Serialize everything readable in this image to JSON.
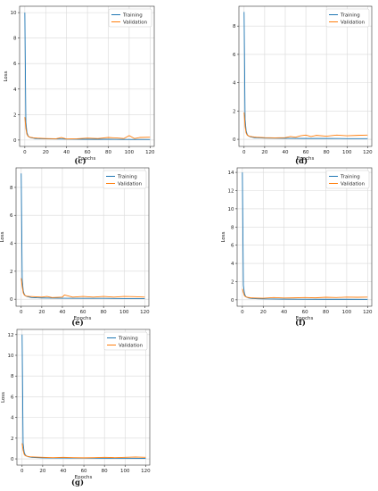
{
  "chart_data": [
    {
      "type": "line",
      "caption": "(c)",
      "xlabel": "Epochs",
      "ylabel": "Loss",
      "xlim": [
        -5,
        124
      ],
      "ylim": [
        -0.5,
        10.5
      ],
      "xticks": [
        0,
        20,
        40,
        60,
        80,
        100,
        120
      ],
      "yticks": [
        0,
        2,
        4,
        6,
        8,
        10
      ],
      "grid": true,
      "legend": "top-right",
      "series": [
        {
          "name": "Training",
          "color": "#1f77b4",
          "x": [
            0,
            1,
            2,
            3,
            4,
            6,
            8,
            10,
            15,
            20,
            30,
            40,
            60,
            80,
            100,
            120
          ],
          "y": [
            10.0,
            1.4,
            0.6,
            0.35,
            0.25,
            0.18,
            0.15,
            0.12,
            0.1,
            0.09,
            0.08,
            0.07,
            0.06,
            0.06,
            0.05,
            0.05
          ]
        },
        {
          "name": "Validation",
          "color": "#ff7f0e",
          "x": [
            0,
            1,
            2,
            3,
            5,
            8,
            12,
            20,
            30,
            35,
            40,
            50,
            60,
            70,
            80,
            90,
            95,
            100,
            105,
            110,
            120
          ],
          "y": [
            1.8,
            0.9,
            0.45,
            0.3,
            0.22,
            0.18,
            0.15,
            0.12,
            0.1,
            0.2,
            0.08,
            0.1,
            0.15,
            0.12,
            0.2,
            0.15,
            0.12,
            0.35,
            0.12,
            0.2,
            0.22
          ]
        }
      ]
    },
    {
      "type": "line",
      "caption": "(d)",
      "xlabel": "Epochs",
      "ylabel": "",
      "xlim": [
        -5,
        124
      ],
      "ylim": [
        -0.5,
        9.4
      ],
      "xticks": [
        0,
        20,
        40,
        60,
        80,
        100,
        120
      ],
      "yticks": [
        0,
        2,
        4,
        6,
        8
      ],
      "grid": true,
      "legend": "top-right",
      "series": [
        {
          "name": "Training",
          "color": "#1f77b4",
          "x": [
            0,
            1,
            2,
            3,
            4,
            6,
            8,
            10,
            15,
            20,
            30,
            40,
            60,
            80,
            100,
            120
          ],
          "y": [
            9.0,
            1.4,
            0.6,
            0.35,
            0.25,
            0.18,
            0.15,
            0.12,
            0.1,
            0.09,
            0.08,
            0.07,
            0.06,
            0.06,
            0.05,
            0.05
          ]
        },
        {
          "name": "Validation",
          "color": "#ff7f0e",
          "x": [
            0,
            1,
            2,
            3,
            5,
            8,
            12,
            20,
            30,
            40,
            45,
            50,
            55,
            60,
            65,
            70,
            80,
            90,
            100,
            110,
            120
          ],
          "y": [
            1.9,
            0.9,
            0.45,
            0.3,
            0.22,
            0.18,
            0.15,
            0.12,
            0.1,
            0.12,
            0.2,
            0.15,
            0.25,
            0.3,
            0.2,
            0.28,
            0.22,
            0.3,
            0.25,
            0.28,
            0.3
          ]
        }
      ]
    },
    {
      "type": "line",
      "caption": "(e)",
      "xlabel": "Epochs",
      "ylabel": "Loss",
      "xlim": [
        -5,
        124
      ],
      "ylim": [
        -0.5,
        9.4
      ],
      "xticks": [
        0,
        20,
        40,
        60,
        80,
        100,
        120
      ],
      "yticks": [
        0,
        2,
        4,
        6,
        8
      ],
      "grid": true,
      "legend": "top-right",
      "series": [
        {
          "name": "Training",
          "color": "#1f77b4",
          "x": [
            0,
            1,
            2,
            3,
            4,
            6,
            8,
            10,
            15,
            20,
            30,
            40,
            60,
            80,
            100,
            120
          ],
          "y": [
            9.0,
            1.4,
            0.6,
            0.35,
            0.25,
            0.18,
            0.15,
            0.12,
            0.1,
            0.09,
            0.08,
            0.07,
            0.06,
            0.06,
            0.05,
            0.05
          ]
        },
        {
          "name": "Validation",
          "color": "#ff7f0e",
          "x": [
            0,
            1,
            2,
            3,
            5,
            8,
            12,
            20,
            25,
            30,
            40,
            42,
            50,
            60,
            70,
            80,
            90,
            100,
            110,
            120
          ],
          "y": [
            1.5,
            0.9,
            0.45,
            0.3,
            0.22,
            0.2,
            0.18,
            0.15,
            0.2,
            0.12,
            0.15,
            0.3,
            0.15,
            0.2,
            0.15,
            0.2,
            0.15,
            0.2,
            0.18,
            0.15
          ]
        }
      ]
    },
    {
      "type": "line",
      "caption": "(f)",
      "xlabel": "Epochs",
      "ylabel": "Loss",
      "xlim": [
        -5,
        124
      ],
      "ylim": [
        -0.7,
        14.5
      ],
      "xticks": [
        0,
        20,
        40,
        60,
        80,
        100,
        120
      ],
      "yticks": [
        0,
        2,
        4,
        6,
        8,
        10,
        12,
        14
      ],
      "grid": true,
      "legend": "top-right",
      "series": [
        {
          "name": "Training",
          "color": "#1f77b4",
          "x": [
            0,
            1,
            2,
            3,
            4,
            6,
            8,
            10,
            15,
            20,
            30,
            40,
            60,
            80,
            100,
            120
          ],
          "y": [
            14.0,
            1.6,
            0.7,
            0.4,
            0.3,
            0.2,
            0.17,
            0.14,
            0.12,
            0.1,
            0.09,
            0.08,
            0.07,
            0.06,
            0.06,
            0.05
          ]
        },
        {
          "name": "Validation",
          "color": "#ff7f0e",
          "x": [
            0,
            1,
            2,
            3,
            5,
            8,
            12,
            20,
            30,
            40,
            50,
            60,
            70,
            80,
            90,
            100,
            110,
            120
          ],
          "y": [
            1.2,
            0.8,
            0.45,
            0.35,
            0.28,
            0.22,
            0.2,
            0.18,
            0.25,
            0.2,
            0.22,
            0.25,
            0.22,
            0.28,
            0.25,
            0.3,
            0.28,
            0.3
          ]
        }
      ]
    },
    {
      "type": "line",
      "caption": "(g)",
      "xlabel": "Epochs",
      "ylabel": "Loss",
      "xlim": [
        -5,
        124
      ],
      "ylim": [
        -0.6,
        12.5
      ],
      "xticks": [
        0,
        20,
        40,
        60,
        80,
        100,
        120
      ],
      "yticks": [
        0,
        2,
        4,
        6,
        8,
        10,
        12
      ],
      "grid": true,
      "legend": "top-right",
      "series": [
        {
          "name": "Training",
          "color": "#1f77b4",
          "x": [
            0,
            1,
            2,
            3,
            4,
            6,
            8,
            10,
            15,
            20,
            30,
            40,
            60,
            80,
            100,
            120
          ],
          "y": [
            12.0,
            1.5,
            0.65,
            0.4,
            0.3,
            0.2,
            0.17,
            0.14,
            0.12,
            0.1,
            0.09,
            0.08,
            0.07,
            0.06,
            0.06,
            0.05
          ]
        },
        {
          "name": "Validation",
          "color": "#ff7f0e",
          "x": [
            0,
            1,
            2,
            3,
            5,
            8,
            12,
            20,
            30,
            40,
            50,
            60,
            70,
            80,
            90,
            100,
            110,
            120
          ],
          "y": [
            1.5,
            0.85,
            0.45,
            0.32,
            0.25,
            0.2,
            0.18,
            0.15,
            0.12,
            0.15,
            0.12,
            0.1,
            0.12,
            0.15,
            0.12,
            0.15,
            0.18,
            0.15
          ]
        }
      ]
    }
  ]
}
